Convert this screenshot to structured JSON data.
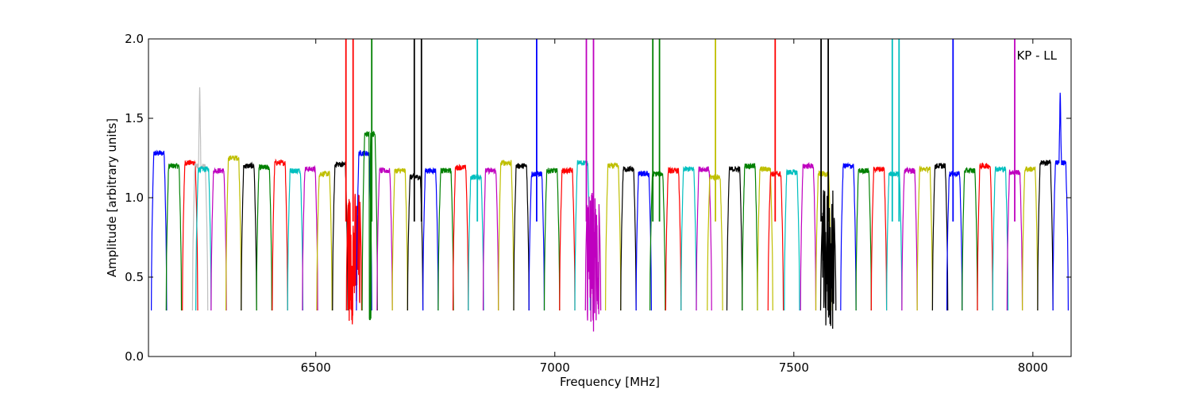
{
  "chart_data": {
    "type": "line",
    "annotation": "KP - LL",
    "xlabel": "Frequency [MHz]",
    "ylabel": "Amplitude [arbitrary units]",
    "xlim": [
      6150,
      8080
    ],
    "ylim": [
      0.0,
      2.0
    ],
    "xticks": [
      6500,
      7000,
      7500,
      8000
    ],
    "xtick_labels": [
      "6500",
      "7000",
      "7500",
      "8000"
    ],
    "yticks": [
      0.0,
      0.5,
      1.0,
      1.5,
      2.0
    ],
    "ytick_labels": [
      "0.0",
      "0.5",
      "1.0",
      "1.5",
      "2.0"
    ],
    "grid": false,
    "channel_width_mhz": 32,
    "typical_dip": 0.29,
    "color_cycle": [
      "#0000ff",
      "#008000",
      "#ff0000",
      "#00bfbf",
      "#bf00bf",
      "#bfbf00",
      "#000000"
    ],
    "series": [
      {
        "center": 6172,
        "color": "#0000ff",
        "level": 1.28
      },
      {
        "center": 6203,
        "color": "#008000",
        "level": 1.2
      },
      {
        "center": 6237,
        "color": "#ff0000",
        "level": 1.22
      },
      {
        "center": 6258,
        "color": "#bfbfbf",
        "level": 1.2,
        "spike": 1.73
      },
      {
        "center": 6265,
        "color": "#00bfbf",
        "level": 1.18
      },
      {
        "center": 6297,
        "color": "#bf00bf",
        "level": 1.17
      },
      {
        "center": 6328,
        "color": "#bfbf00",
        "level": 1.25
      },
      {
        "center": 6360,
        "color": "#000000",
        "level": 1.2
      },
      {
        "center": 6392,
        "color": "#008000",
        "level": 1.19
      },
      {
        "center": 6425,
        "color": "#ff0000",
        "level": 1.22
      },
      {
        "center": 6457,
        "color": "#00bfbf",
        "level": 1.17
      },
      {
        "center": 6488,
        "color": "#bf00bf",
        "level": 1.18
      },
      {
        "center": 6518,
        "color": "#bfbf00",
        "level": 1.15
      },
      {
        "center": 6551,
        "color": "#000000",
        "level": 1.21
      },
      {
        "center": 6580,
        "color": "#ff0000",
        "level": 1.1,
        "rfi": true,
        "noise_low": 0.2,
        "noise_high": 1.05
      },
      {
        "center": 6601,
        "color": "#0000ff",
        "level": 1.28
      },
      {
        "center": 6613,
        "color": "#008000",
        "level": 1.4,
        "noise_low": 0.18
      },
      {
        "center": 6644,
        "color": "#bf00bf",
        "level": 1.17
      },
      {
        "center": 6676,
        "color": "#bfbf00",
        "level": 1.17
      },
      {
        "center": 6708,
        "color": "#000000",
        "level": 1.13
      },
      {
        "center": 6740,
        "color": "#0000ff",
        "level": 1.17
      },
      {
        "center": 6772,
        "color": "#008000",
        "level": 1.17
      },
      {
        "center": 6803,
        "color": "#ff0000",
        "level": 1.19
      },
      {
        "center": 6835,
        "color": "#00bfbf",
        "level": 1.13
      },
      {
        "center": 6866,
        "color": "#bf00bf",
        "level": 1.17
      },
      {
        "center": 6898,
        "color": "#bfbf00",
        "level": 1.22
      },
      {
        "center": 6930,
        "color": "#000000",
        "level": 1.2
      },
      {
        "center": 6962,
        "color": "#0000ff",
        "level": 1.15
      },
      {
        "center": 6994,
        "color": "#008000",
        "level": 1.17
      },
      {
        "center": 7026,
        "color": "#ff0000",
        "level": 1.17
      },
      {
        "center": 7058,
        "color": "#00bfbf",
        "level": 1.22
      },
      {
        "center": 7080,
        "color": "#bf00bf",
        "level": 1.1,
        "rfi": true,
        "noise_low": 0.15,
        "noise_high": 1.05
      },
      {
        "center": 7122,
        "color": "#bfbf00",
        "level": 1.2
      },
      {
        "center": 7154,
        "color": "#000000",
        "level": 1.18
      },
      {
        "center": 7186,
        "color": "#0000ff",
        "level": 1.15
      },
      {
        "center": 7215,
        "color": "#008000",
        "level": 1.15
      },
      {
        "center": 7248,
        "color": "#ff0000",
        "level": 1.17
      },
      {
        "center": 7280,
        "color": "#00bfbf",
        "level": 1.18
      },
      {
        "center": 7312,
        "color": "#bf00bf",
        "level": 1.18
      },
      {
        "center": 7335,
        "color": "#bfbf00",
        "level": 1.13
      },
      {
        "center": 7376,
        "color": "#000000",
        "level": 1.18
      },
      {
        "center": 7408,
        "color": "#008000",
        "level": 1.2
      },
      {
        "center": 7440,
        "color": "#bfbf00",
        "level": 1.18
      },
      {
        "center": 7462,
        "color": "#ff0000",
        "level": 1.15
      },
      {
        "center": 7496,
        "color": "#00bfbf",
        "level": 1.16
      },
      {
        "center": 7530,
        "color": "#bf00bf",
        "level": 1.2
      },
      {
        "center": 7562,
        "color": "#bfbf00",
        "level": 1.15
      },
      {
        "center": 7572,
        "color": "#000000",
        "level": 1.0,
        "rfi": true,
        "noise_low": 0.15,
        "noise_high": 1.05
      },
      {
        "center": 7614,
        "color": "#0000ff",
        "level": 1.2
      },
      {
        "center": 7646,
        "color": "#008000",
        "level": 1.17
      },
      {
        "center": 7678,
        "color": "#ff0000",
        "level": 1.18
      },
      {
        "center": 7710,
        "color": "#00bfbf",
        "level": 1.15
      },
      {
        "center": 7742,
        "color": "#bf00bf",
        "level": 1.17
      },
      {
        "center": 7774,
        "color": "#bfbf00",
        "level": 1.18
      },
      {
        "center": 7806,
        "color": "#000000",
        "level": 1.2
      },
      {
        "center": 7836,
        "color": "#0000ff",
        "level": 1.15
      },
      {
        "center": 7868,
        "color": "#008000",
        "level": 1.17
      },
      {
        "center": 7900,
        "color": "#ff0000",
        "level": 1.2
      },
      {
        "center": 7932,
        "color": "#00bfbf",
        "level": 1.18
      },
      {
        "center": 7962,
        "color": "#bf00bf",
        "level": 1.16
      },
      {
        "center": 7994,
        "color": "#bfbf00",
        "level": 1.18
      },
      {
        "center": 8026,
        "color": "#000000",
        "level": 1.22
      },
      {
        "center": 8058,
        "color": "#0000ff",
        "level": 1.22,
        "spike": 1.69
      }
    ],
    "rfi_spikes": [
      {
        "x": 6563,
        "color": "#ff0000"
      },
      {
        "x": 6578,
        "color": "#ff0000"
      },
      {
        "x": 6617,
        "color": "#008000"
      },
      {
        "x": 6706,
        "color": "#000000"
      },
      {
        "x": 6721,
        "color": "#000000"
      },
      {
        "x": 6838,
        "color": "#00bfbf"
      },
      {
        "x": 6962,
        "color": "#0000ff"
      },
      {
        "x": 7066,
        "color": "#bf00bf"
      },
      {
        "x": 7081,
        "color": "#bf00bf"
      },
      {
        "x": 7205,
        "color": "#008000"
      },
      {
        "x": 7219,
        "color": "#008000"
      },
      {
        "x": 7336,
        "color": "#bfbf00"
      },
      {
        "x": 7461,
        "color": "#ff0000"
      },
      {
        "x": 7557,
        "color": "#000000"
      },
      {
        "x": 7572,
        "color": "#000000"
      },
      {
        "x": 7706,
        "color": "#00bfbf"
      },
      {
        "x": 7720,
        "color": "#00bfbf"
      },
      {
        "x": 7833,
        "color": "#0000ff"
      },
      {
        "x": 7962,
        "color": "#bf00bf"
      }
    ]
  }
}
